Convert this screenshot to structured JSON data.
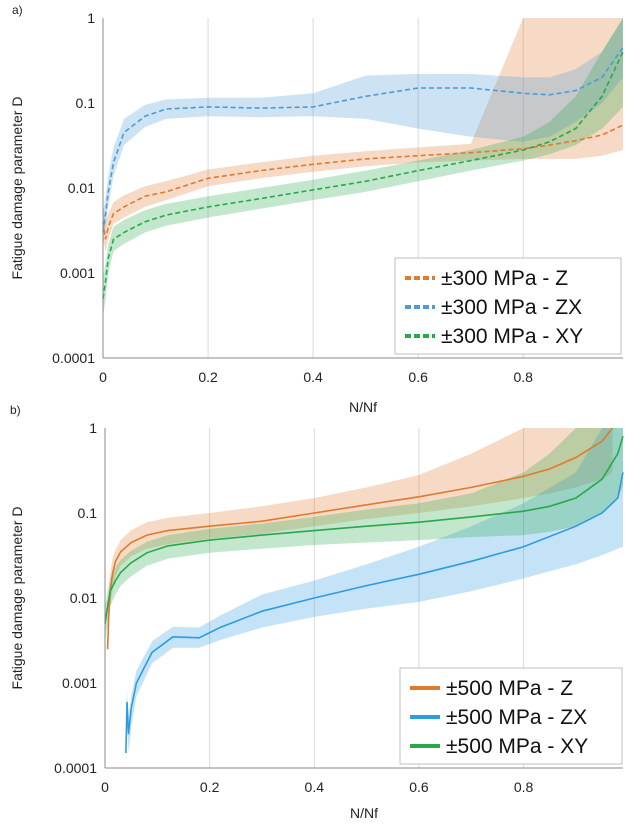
{
  "chart_data": [
    {
      "panel": "a)",
      "type": "line",
      "xlabel": "N/Nf",
      "ylabel": "Fatigue damage parameter D",
      "xlim": [
        0,
        0.99
      ],
      "ylim": [
        0.0001,
        1
      ],
      "yscale": "log",
      "x_ticks": [
        "0",
        "0.2",
        "0.4",
        "0.6",
        "0.8"
      ],
      "y_ticks": [
        "1",
        "0.1",
        "0.01",
        "0.001",
        "0.0001"
      ],
      "grid": "vertical",
      "legend_position": "bottom-right",
      "series": [
        {
          "name": "±300 MPa - Z",
          "color": "#E07A2E",
          "style": "dashed",
          "x": [
            0.0,
            0.005,
            0.01,
            0.02,
            0.04,
            0.08,
            0.12,
            0.2,
            0.3,
            0.4,
            0.5,
            0.6,
            0.7,
            0.8,
            0.85,
            0.9,
            0.95,
            0.99
          ],
          "y": [
            0.004,
            0.0025,
            0.0035,
            0.005,
            0.006,
            0.008,
            0.009,
            0.013,
            0.016,
            0.019,
            0.022,
            0.024,
            0.026,
            0.029,
            0.032,
            0.036,
            0.042,
            0.055
          ],
          "band_low": [
            0.0025,
            0.0018,
            0.0025,
            0.0038,
            0.0045,
            0.006,
            0.0072,
            0.0105,
            0.013,
            0.0155,
            0.018,
            0.02,
            0.021,
            0.022,
            0.022,
            0.022,
            0.024,
            0.028
          ],
          "band_high": [
            0.007,
            0.004,
            0.005,
            0.0068,
            0.0082,
            0.0105,
            0.012,
            0.0165,
            0.02,
            0.024,
            0.027,
            0.03,
            0.033,
            1,
            1,
            1,
            1,
            1
          ]
        },
        {
          "name": "±300 MPa - ZX",
          "color": "#4A9BD8",
          "style": "dashed",
          "x": [
            0.0,
            0.005,
            0.01,
            0.02,
            0.04,
            0.08,
            0.12,
            0.2,
            0.3,
            0.4,
            0.5,
            0.6,
            0.7,
            0.8,
            0.85,
            0.9,
            0.95,
            0.99
          ],
          "y": [
            0.003,
            0.005,
            0.009,
            0.02,
            0.045,
            0.07,
            0.085,
            0.09,
            0.087,
            0.09,
            0.12,
            0.15,
            0.15,
            0.13,
            0.125,
            0.14,
            0.2,
            0.45
          ],
          "band_low": [
            0.002,
            0.0035,
            0.006,
            0.014,
            0.032,
            0.052,
            0.065,
            0.07,
            0.068,
            0.07,
            0.065,
            0.05,
            0.04,
            0.035,
            0.04,
            0.06,
            0.1,
            0.2
          ],
          "band_high": [
            0.005,
            0.008,
            0.014,
            0.03,
            0.065,
            0.095,
            0.11,
            0.115,
            0.115,
            0.13,
            0.21,
            0.22,
            0.22,
            0.2,
            0.2,
            0.25,
            0.4,
            1
          ]
        },
        {
          "name": "±300 MPa - XY",
          "color": "#27A84A",
          "style": "dashed",
          "x": [
            0.0,
            0.005,
            0.01,
            0.02,
            0.04,
            0.08,
            0.12,
            0.2,
            0.3,
            0.4,
            0.5,
            0.6,
            0.7,
            0.8,
            0.85,
            0.9,
            0.95,
            0.99
          ],
          "y": [
            0.0005,
            0.0008,
            0.0015,
            0.0025,
            0.003,
            0.004,
            0.0048,
            0.006,
            0.0075,
            0.0095,
            0.012,
            0.016,
            0.021,
            0.028,
            0.035,
            0.05,
            0.12,
            0.4
          ],
          "band_low": [
            0.0003,
            0.0005,
            0.001,
            0.0018,
            0.0022,
            0.003,
            0.0036,
            0.0045,
            0.0057,
            0.0072,
            0.009,
            0.012,
            0.016,
            0.021,
            0.025,
            0.032,
            0.05,
            0.09
          ],
          "band_high": [
            0.0009,
            0.0013,
            0.0022,
            0.0035,
            0.0042,
            0.0055,
            0.0065,
            0.008,
            0.01,
            0.0125,
            0.016,
            0.021,
            0.028,
            0.04,
            0.06,
            0.12,
            0.4,
            1
          ]
        }
      ]
    },
    {
      "panel": "b)",
      "type": "line",
      "xlabel": "N/Nf",
      "ylabel": "Fatigue damage parameter D",
      "xlim": [
        0,
        0.99
      ],
      "ylim": [
        0.0001,
        1
      ],
      "yscale": "log",
      "x_ticks": [
        "0",
        "0.2",
        "0.4",
        "0.6",
        "0.8"
      ],
      "y_ticks": [
        "1",
        "0.1",
        "0.01",
        "0.001",
        "0.0001"
      ],
      "grid": "vertical",
      "legend_position": "bottom-right",
      "series": [
        {
          "name": "±500 MPa - Z",
          "color": "#E07A2E",
          "style": "solid",
          "x": [
            0.005,
            0.007,
            0.01,
            0.015,
            0.02,
            0.03,
            0.05,
            0.08,
            0.12,
            0.2,
            0.3,
            0.4,
            0.5,
            0.6,
            0.7,
            0.8,
            0.85,
            0.9,
            0.95,
            0.97
          ],
          "y": [
            0.0025,
            0.006,
            0.012,
            0.02,
            0.027,
            0.035,
            0.045,
            0.055,
            0.062,
            0.07,
            0.08,
            0.1,
            0.125,
            0.155,
            0.2,
            0.27,
            0.33,
            0.45,
            0.7,
            1
          ],
          "band_low": [
            0.002,
            0.004,
            0.008,
            0.013,
            0.018,
            0.024,
            0.031,
            0.038,
            0.043,
            0.05,
            0.057,
            0.07,
            0.085,
            0.1,
            0.12,
            0.15,
            0.17,
            0.2,
            0.25,
            0.3
          ],
          "band_high": [
            0.006,
            0.012,
            0.02,
            0.03,
            0.037,
            0.048,
            0.063,
            0.078,
            0.088,
            0.1,
            0.12,
            0.15,
            0.2,
            0.28,
            0.5,
            1,
            1,
            1,
            1,
            1
          ]
        },
        {
          "name": "±500 MPa - ZX",
          "color": "#2E9BE0",
          "style": "solid",
          "x": [
            0.04,
            0.042,
            0.045,
            0.05,
            0.06,
            0.09,
            0.13,
            0.18,
            0.22,
            0.3,
            0.4,
            0.5,
            0.6,
            0.7,
            0.8,
            0.9,
            0.95,
            0.98,
            0.99
          ],
          "y": [
            0.00015,
            0.0006,
            0.00025,
            0.0005,
            0.001,
            0.0023,
            0.0035,
            0.0034,
            0.0045,
            0.007,
            0.01,
            0.014,
            0.019,
            0.027,
            0.04,
            0.07,
            0.1,
            0.15,
            0.3
          ],
          "band_low": [
            0.0001,
            0.00035,
            0.00015,
            0.0003,
            0.0007,
            0.0017,
            0.0026,
            0.0026,
            0.0032,
            0.0045,
            0.006,
            0.0075,
            0.009,
            0.012,
            0.017,
            0.025,
            0.032,
            0.038,
            0.04
          ],
          "band_high": [
            0.0002,
            0.0008,
            0.0004,
            0.0007,
            0.0014,
            0.0031,
            0.0046,
            0.0045,
            0.0062,
            0.011,
            0.016,
            0.025,
            0.04,
            0.07,
            0.13,
            0.3,
            1,
            1,
            1
          ]
        },
        {
          "name": "±500 MPa - XY",
          "color": "#27A84A",
          "style": "solid",
          "x": [
            0.0,
            0.005,
            0.01,
            0.02,
            0.03,
            0.05,
            0.08,
            0.12,
            0.2,
            0.3,
            0.4,
            0.5,
            0.6,
            0.7,
            0.8,
            0.85,
            0.9,
            0.95,
            0.98,
            0.99
          ],
          "y": [
            0.005,
            0.008,
            0.012,
            0.016,
            0.02,
            0.026,
            0.034,
            0.041,
            0.048,
            0.055,
            0.062,
            0.07,
            0.078,
            0.09,
            0.105,
            0.12,
            0.15,
            0.25,
            0.5,
            0.8
          ],
          "band_low": [
            0.003,
            0.005,
            0.008,
            0.011,
            0.014,
            0.018,
            0.024,
            0.029,
            0.034,
            0.038,
            0.042,
            0.045,
            0.048,
            0.052,
            0.055,
            0.06,
            0.07,
            0.1,
            0.15,
            0.2
          ],
          "band_high": [
            0.008,
            0.012,
            0.017,
            0.023,
            0.028,
            0.036,
            0.046,
            0.055,
            0.065,
            0.075,
            0.09,
            0.11,
            0.13,
            0.17,
            0.3,
            0.5,
            1,
            1,
            1,
            1
          ]
        }
      ]
    }
  ]
}
